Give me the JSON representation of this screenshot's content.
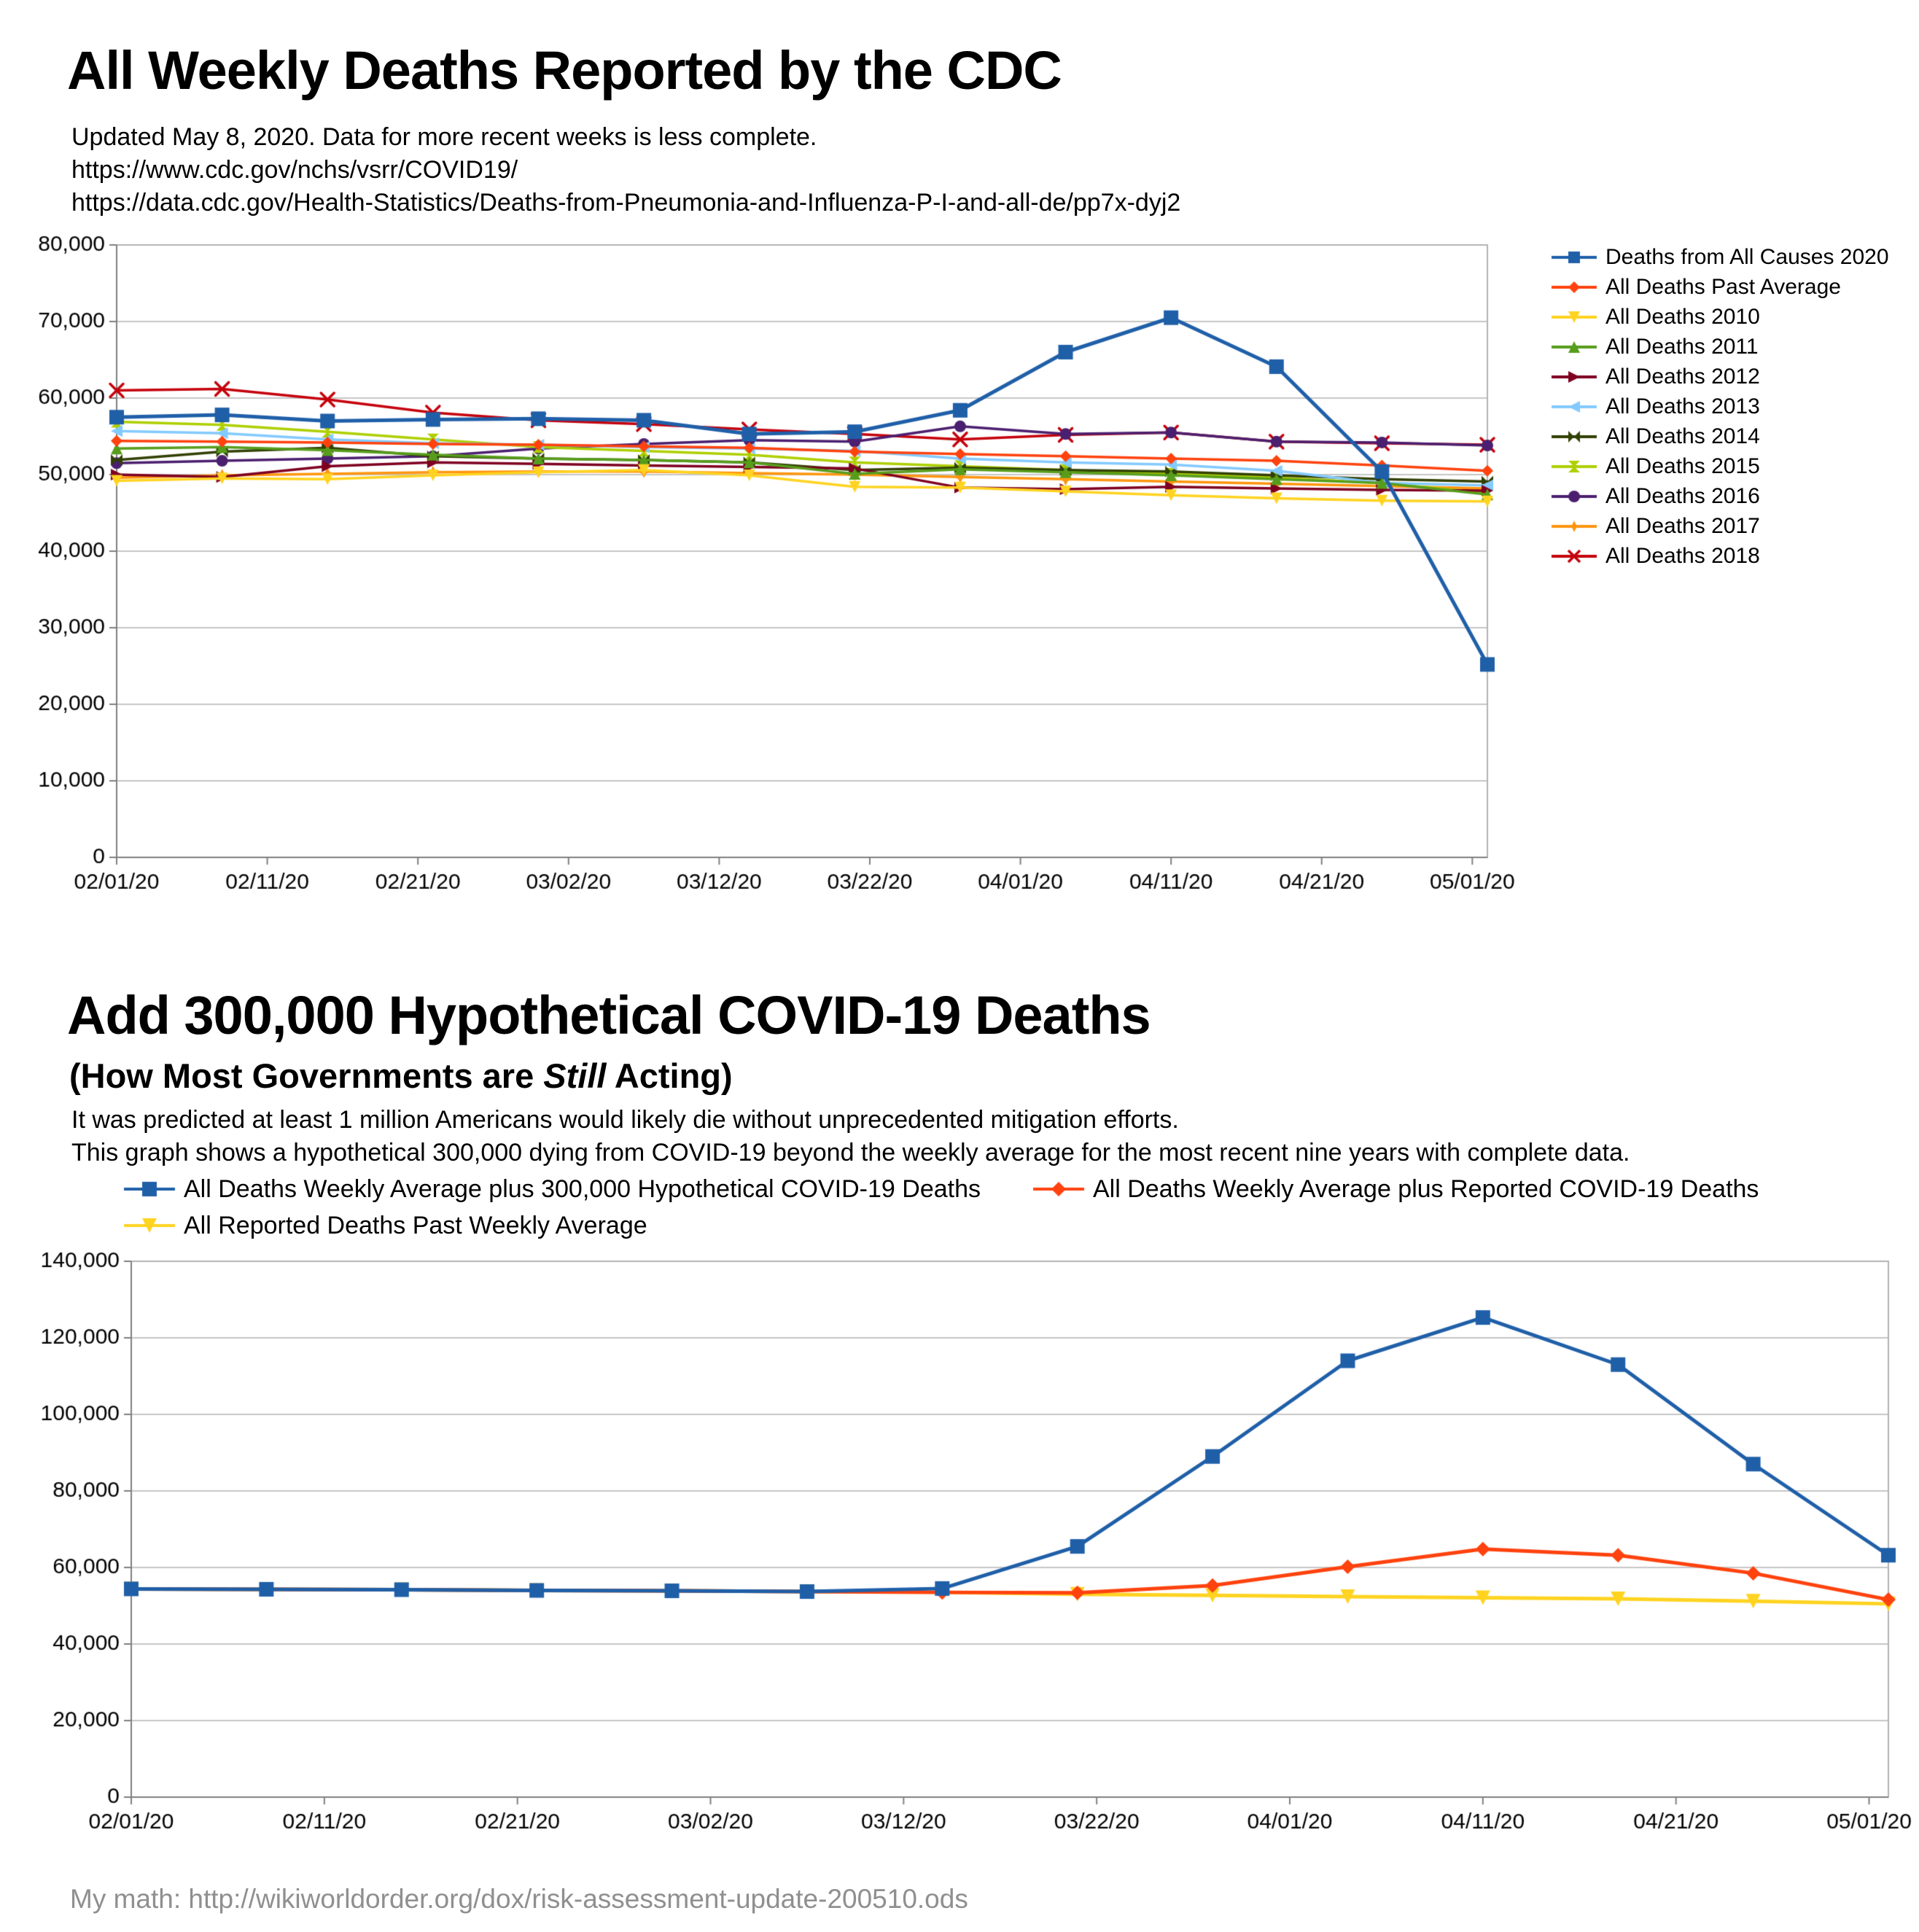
{
  "page": {
    "footer": "My math: http://wikiworldorder.org/dox/risk-assessment-update-200510.ods"
  },
  "chart1_header": {
    "title": "All Weekly Deaths Reported by the CDC",
    "subtitle_lines": [
      "Updated May 8, 2020. Data for more recent weeks is less complete.",
      "https://www.cdc.gov/nchs/vsrr/COVID19/",
      "https://data.cdc.gov/Health-Statistics/Deaths-from-Pneumonia-and-Influenza-P-I-and-all-de/pp7x-dyj2"
    ]
  },
  "chart2_header": {
    "title": "Add 300,000 Hypothetical COVID-19 Deaths",
    "subtitle_prefix": "(How Most Governments are ",
    "subtitle_italic": "Still",
    "subtitle_suffix": " Acting)",
    "desc_lines": [
      "It was predicted at least 1 million Americans would likely die without unprecedented mitigation efforts.",
      "This graph shows a hypothetical 300,000 dying from COVID-19 beyond the weekly average for the most recent nine years with complete data."
    ]
  },
  "chart_data": [
    {
      "type": "line",
      "title": "All Weekly Deaths Reported by the CDC",
      "xlabel": "",
      "ylabel": "",
      "grid": true,
      "legend_position": "right",
      "xlim": [
        0,
        91
      ],
      "ylim": [
        0,
        80000
      ],
      "ytick_step": 10000,
      "week_ending_dates": [
        "02/01/20",
        "02/08/20",
        "02/15/20",
        "02/22/20",
        "02/29/20",
        "03/07/20",
        "03/14/20",
        "03/21/20",
        "03/28/20",
        "04/04/20",
        "04/11/20",
        "04/18/20",
        "04/25/20",
        "05/02/20"
      ],
      "x_days": [
        0,
        7,
        14,
        21,
        28,
        35,
        42,
        49,
        56,
        63,
        70,
        77,
        84,
        91
      ],
      "x_ticks_days": [
        0,
        10,
        20,
        30,
        40,
        50,
        60,
        70,
        80,
        90
      ],
      "x_ticks_labels": [
        "02/01/20",
        "02/11/20",
        "02/21/20",
        "03/02/20",
        "03/12/20",
        "03/22/20",
        "04/01/20",
        "04/11/20",
        "04/21/20",
        "05/01/20"
      ],
      "series": [
        {
          "name": "Deaths from All Causes 2020",
          "color": "#1F5FA8",
          "marker": "square",
          "marker_size": 10,
          "line_width": 5,
          "values": [
            57500,
            57800,
            57000,
            57200,
            57300,
            57100,
            55300,
            55600,
            58400,
            66000,
            70500,
            64100,
            50400,
            25200
          ]
        },
        {
          "name": "All Deaths Past Average",
          "color": "#FF420E",
          "marker": "diamond",
          "marker_size": 8,
          "line_width": 3.5,
          "values": [
            54400,
            54300,
            54200,
            54000,
            53900,
            53700,
            53500,
            53000,
            52700,
            52400,
            52100,
            51800,
            51200,
            50500
          ]
        },
        {
          "name": "All Deaths 2010",
          "color": "#FFD320",
          "marker": "tri-down",
          "marker_size": 8,
          "line_width": 3.5,
          "values": [
            49200,
            49500,
            49400,
            49900,
            50300,
            50600,
            49900,
            48400,
            48300,
            47800,
            47300,
            46900,
            46600,
            46500
          ]
        },
        {
          "name": "All Deaths 2011",
          "color": "#579D1C",
          "marker": "tri-up",
          "marker_size": 8,
          "line_width": 3.5,
          "values": [
            53400,
            53600,
            53200,
            52600,
            52100,
            51900,
            51600,
            50100,
            50700,
            50300,
            49900,
            49400,
            48900,
            47400
          ]
        },
        {
          "name": "All Deaths 2012",
          "color": "#7E0021",
          "marker": "tri-right",
          "marker_size": 8,
          "line_width": 3.5,
          "values": [
            50000,
            49700,
            51100,
            51600,
            51400,
            51200,
            51000,
            50800,
            48300,
            48100,
            48400,
            48200,
            48000,
            47900
          ]
        },
        {
          "name": "All Deaths 2013",
          "color": "#83CAFF",
          "marker": "tri-left",
          "marker_size": 8,
          "line_width": 3.5,
          "values": [
            55700,
            55400,
            54600,
            54100,
            53900,
            53600,
            53400,
            53100,
            52100,
            51600,
            51300,
            50500,
            48900,
            48600
          ]
        },
        {
          "name": "All Deaths 2014",
          "color": "#314004",
          "marker": "bowtie",
          "marker_size": 8,
          "line_width": 3.5,
          "values": [
            51900,
            53000,
            53500,
            52400,
            52100,
            51900,
            51600,
            50600,
            50900,
            50600,
            50400,
            49900,
            49400,
            49100
          ]
        },
        {
          "name": "All Deaths 2015",
          "color": "#AECF00",
          "marker": "hourglass",
          "marker_size": 8,
          "line_width": 3.5,
          "values": [
            56900,
            56500,
            55600,
            54600,
            53600,
            53100,
            52600,
            51600,
            51100,
            50600,
            50100,
            49600,
            48900,
            47600
          ]
        },
        {
          "name": "All Deaths 2016",
          "color": "#4B1F6F",
          "marker": "circle",
          "marker_size": 8,
          "line_width": 3.5,
          "values": [
            51500,
            51800,
            52100,
            52400,
            53400,
            54000,
            54500,
            54300,
            56300,
            55300,
            55500,
            54300,
            54200,
            53800
          ]
        },
        {
          "name": "All Deaths 2017",
          "color": "#FF950E",
          "marker": "star4",
          "marker_size": 9,
          "line_width": 3.5,
          "values": [
            49600,
            49900,
            50100,
            50300,
            50400,
            50400,
            50200,
            50000,
            49700,
            49400,
            49100,
            48800,
            48500,
            48200
          ]
        },
        {
          "name": "All Deaths 2018",
          "color": "#C5000B",
          "marker": "x",
          "marker_size": 9,
          "line_width": 3.5,
          "values": [
            61000,
            61200,
            59800,
            58100,
            57100,
            56600,
            55900,
            55300,
            54600,
            55200,
            55500,
            54300,
            54100,
            53900
          ]
        }
      ]
    },
    {
      "type": "line",
      "title": "Add 300,000 Hypothetical COVID-19 Deaths",
      "xlabel": "",
      "ylabel": "",
      "grid": true,
      "legend_position": "top",
      "xlim": [
        0,
        91
      ],
      "ylim": [
        0,
        140000
      ],
      "ytick_step": 20000,
      "week_ending_dates": [
        "02/01/20",
        "02/08/20",
        "02/15/20",
        "02/22/20",
        "02/29/20",
        "03/07/20",
        "03/14/20",
        "03/21/20",
        "03/28/20",
        "04/04/20",
        "04/11/20",
        "04/18/20",
        "04/25/20",
        "05/02/20"
      ],
      "x_days": [
        0,
        7,
        14,
        21,
        28,
        35,
        42,
        49,
        56,
        63,
        70,
        77,
        84,
        91
      ],
      "x_ticks_days": [
        0,
        10,
        20,
        30,
        40,
        50,
        60,
        70,
        80,
        90
      ],
      "x_ticks_labels": [
        "02/01/20",
        "02/11/20",
        "02/21/20",
        "03/02/20",
        "03/12/20",
        "03/22/20",
        "04/01/20",
        "04/11/20",
        "04/21/20",
        "05/01/20"
      ],
      "series": [
        {
          "name": "All Deaths Weekly Average plus 300,000 Hypothetical COVID-19 Deaths",
          "color": "#1F5FA8",
          "marker": "square",
          "marker_size": 10,
          "line_width": 5,
          "values": [
            54400,
            54300,
            54200,
            54000,
            53900,
            53700,
            54500,
            65500,
            89000,
            114000,
            125300,
            113000,
            87000,
            63200
          ]
        },
        {
          "name": "All Deaths Weekly Average plus Reported COVID-19 Deaths",
          "color": "#FF420E",
          "marker": "diamond",
          "marker_size": 10,
          "line_width": 5,
          "values": [
            54400,
            54300,
            54200,
            54000,
            53900,
            53700,
            53500,
            53400,
            55300,
            60200,
            64800,
            63200,
            58500,
            51600
          ]
        },
        {
          "name": "All Reported Deaths Past Weekly Average",
          "color": "#FFD320",
          "marker": "tri-down",
          "marker_size": 10,
          "line_width": 5,
          "values": [
            54400,
            54300,
            54200,
            54000,
            53900,
            53700,
            53500,
            53000,
            52700,
            52400,
            52100,
            51800,
            51200,
            50500
          ]
        }
      ]
    }
  ]
}
